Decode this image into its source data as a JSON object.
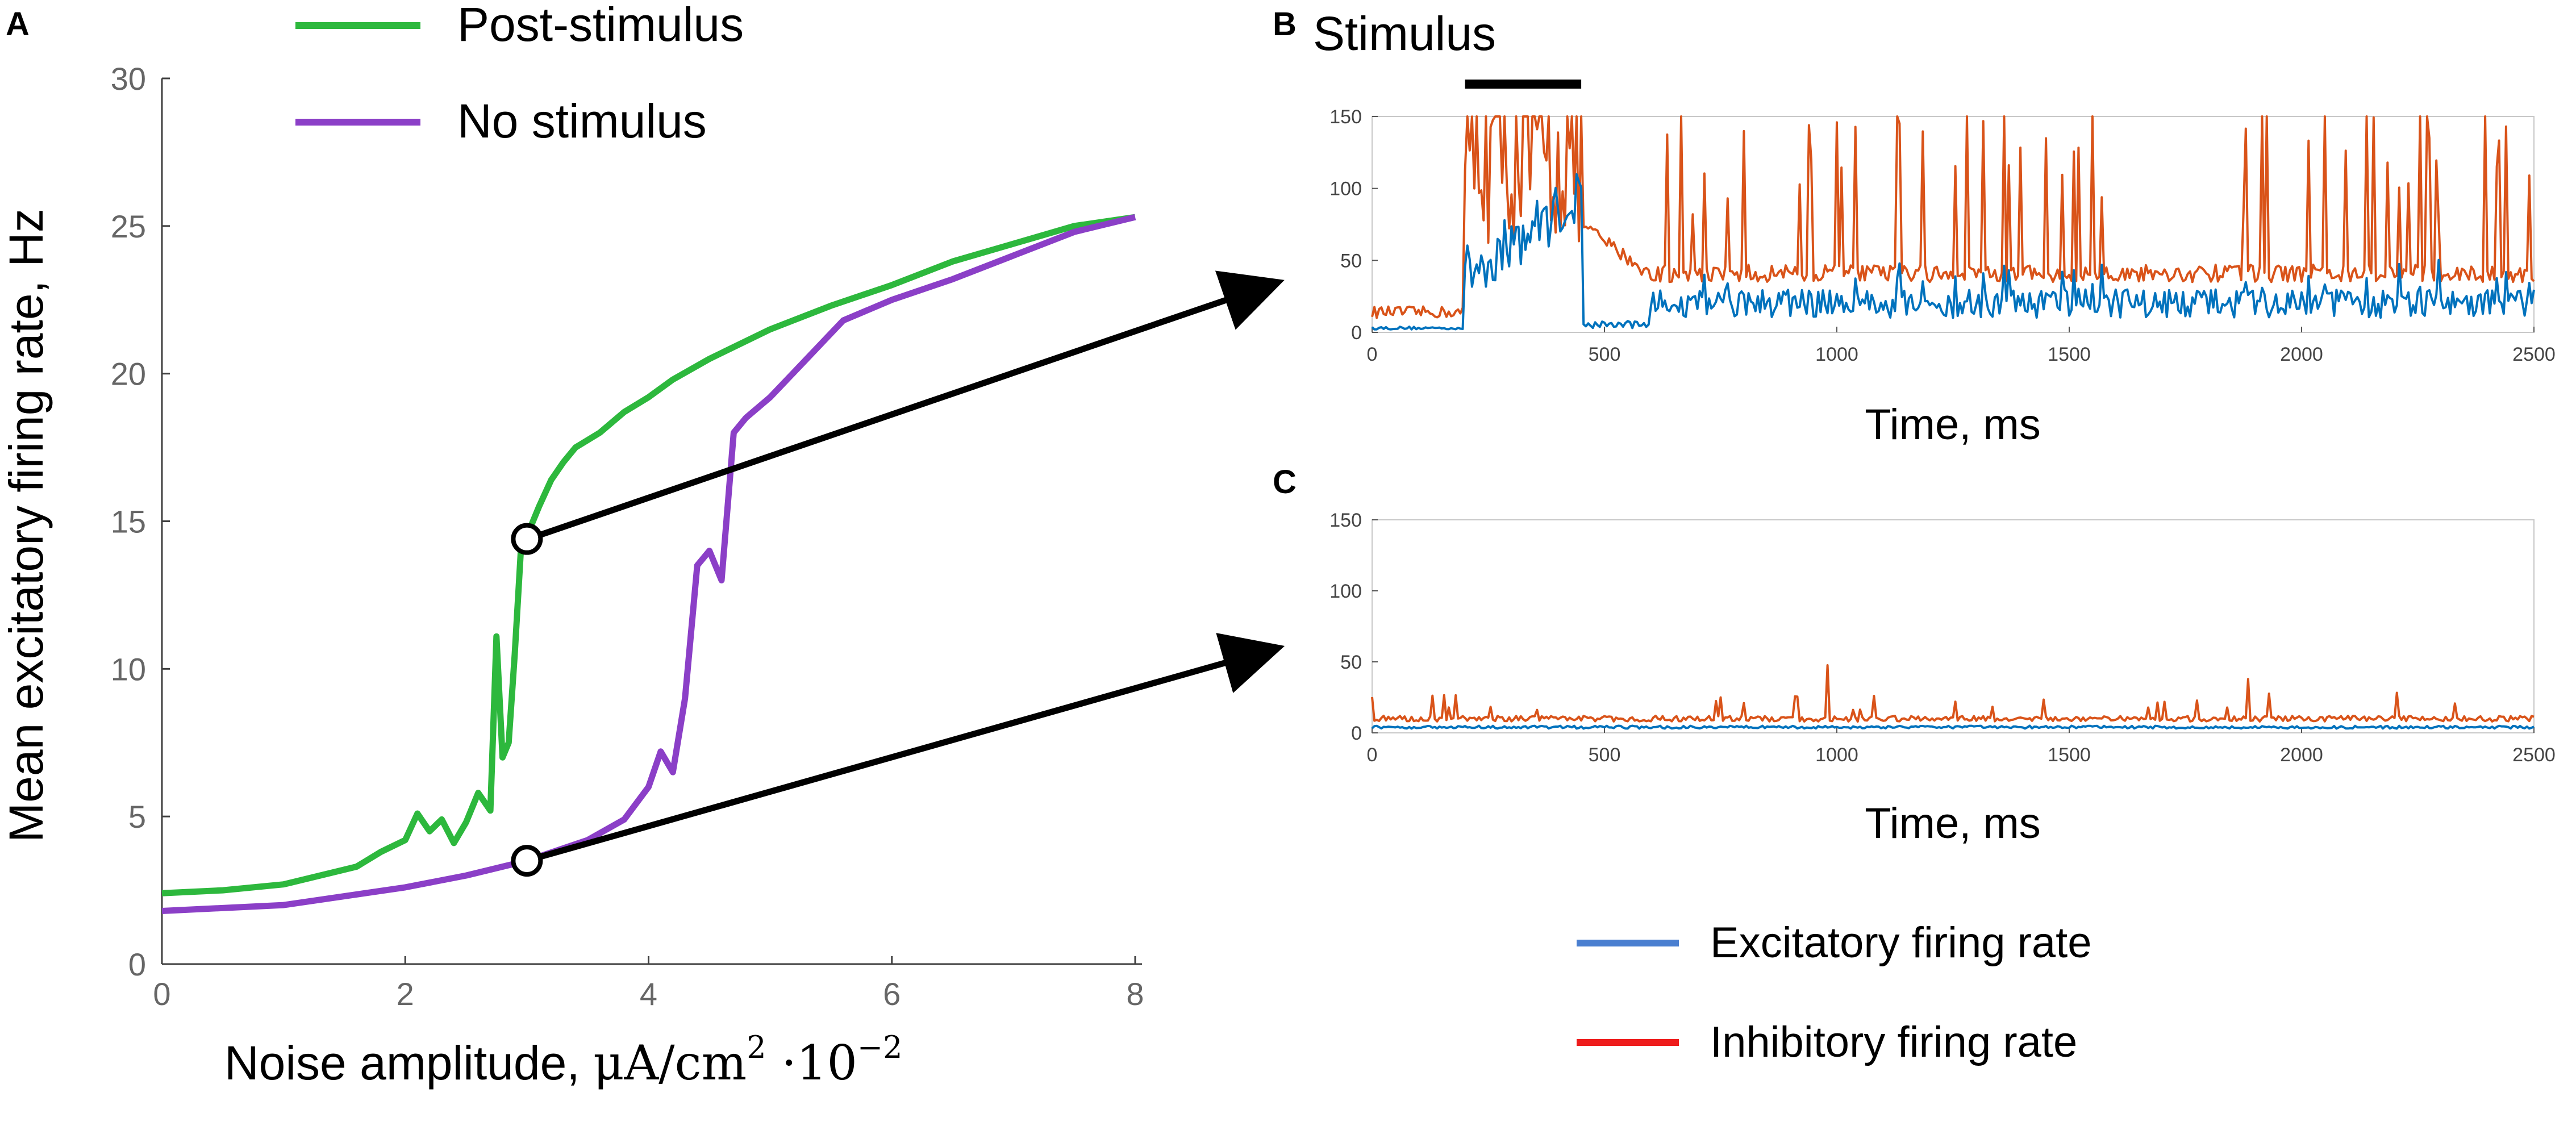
{
  "panels": {
    "a_label": "A",
    "b_label": "B",
    "c_label": "C"
  },
  "chart_data": [
    {
      "id": "A",
      "type": "line",
      "xlabel_text": "Noise amplitude, ",
      "xlabel_unit": "μA/cm",
      "xlabel_sup": "2",
      "xlabel_scale": " ·10",
      "xlabel_exp": "−2",
      "ylabel": "Mean excitatory firing rate, Hz",
      "xlim": [
        0,
        8
      ],
      "ylim": [
        0,
        30
      ],
      "xticks": [
        "0",
        "2",
        "4",
        "6",
        "8"
      ],
      "yticks": [
        "0",
        "5",
        "10",
        "15",
        "20",
        "25",
        "30"
      ],
      "grid": false,
      "legend_position": "top-left",
      "series": [
        {
          "name": "Post-stimulus",
          "color": "#2db83d",
          "x": [
            0,
            0.5,
            1,
            1.3,
            1.6,
            1.8,
            2,
            2.1,
            2.2,
            2.3,
            2.4,
            2.5,
            2.6,
            2.7,
            2.75,
            2.8,
            2.85,
            2.9,
            2.95,
            3,
            3.1,
            3.2,
            3.3,
            3.4,
            3.6,
            3.8,
            4,
            4.2,
            4.5,
            5,
            5.5,
            6,
            6.5,
            7,
            7.5,
            8
          ],
          "y": [
            2.4,
            2.5,
            2.7,
            3.0,
            3.3,
            3.8,
            4.2,
            5.1,
            4.5,
            4.9,
            4.1,
            4.8,
            5.8,
            5.2,
            11.1,
            7.0,
            7.5,
            10.5,
            14.0,
            14.5,
            15.5,
            16.4,
            17.0,
            17.5,
            18.0,
            18.7,
            19.2,
            19.8,
            20.5,
            21.5,
            22.3,
            23.0,
            23.8,
            24.4,
            25.0,
            25.3
          ]
        },
        {
          "name": "No stimulus",
          "color": "#8b3fc7",
          "x": [
            0,
            1,
            2,
            2.5,
            3,
            3.5,
            3.8,
            4,
            4.1,
            4.2,
            4.3,
            4.4,
            4.5,
            4.6,
            4.7,
            4.8,
            5,
            5.3,
            5.6,
            6,
            6.5,
            7,
            7.5,
            8
          ],
          "y": [
            1.8,
            2.0,
            2.6,
            3.0,
            3.5,
            4.2,
            4.9,
            6.0,
            7.2,
            6.5,
            9.0,
            13.5,
            14.0,
            13.0,
            18.0,
            18.5,
            19.2,
            20.5,
            21.8,
            22.5,
            23.2,
            24.0,
            24.8,
            25.3
          ]
        }
      ],
      "markers": [
        {
          "x": 3,
          "y": 14.4,
          "target": "B"
        },
        {
          "x": 3,
          "y": 3.5,
          "target": "C"
        }
      ]
    },
    {
      "id": "B",
      "type": "line",
      "annotation": "Stimulus",
      "stimulus_range": [
        200,
        450
      ],
      "xlabel": "Time, ms",
      "xlim": [
        0,
        2500
      ],
      "ylim": [
        0,
        150
      ],
      "xticks": [
        "0",
        "500",
        "1000",
        "1500",
        "2000",
        "2500"
      ],
      "yticks": [
        "0",
        "50",
        "100",
        "150"
      ],
      "series": [
        {
          "name": "Inhibitory firing rate",
          "color": "#d95319",
          "style": "persistent-activity",
          "baseline": 35,
          "spike_max": 150
        },
        {
          "name": "Excitatory firing rate",
          "color": "#0072bd",
          "style": "persistent-activity",
          "baseline": 10,
          "spike_max": 110
        }
      ]
    },
    {
      "id": "C",
      "type": "line",
      "xlabel": "Time, ms",
      "xlim": [
        0,
        2500
      ],
      "ylim": [
        0,
        150
      ],
      "xticks": [
        "0",
        "500",
        "1000",
        "1500",
        "2000",
        "2500"
      ],
      "yticks": [
        "0",
        "50",
        "100",
        "150"
      ],
      "series": [
        {
          "name": "Inhibitory firing rate",
          "color": "#d95319",
          "style": "low-activity",
          "baseline": 8,
          "spike_max": 47
        },
        {
          "name": "Excitatory firing rate",
          "color": "#0072bd",
          "style": "low-activity",
          "baseline": 3,
          "spike_max": 6
        }
      ]
    }
  ],
  "legend_bc": [
    {
      "label": "Excitatory firing rate",
      "color": "#4a7fd0"
    },
    {
      "label": "Inhibitory firing rate",
      "color": "#ee1c1c"
    }
  ]
}
